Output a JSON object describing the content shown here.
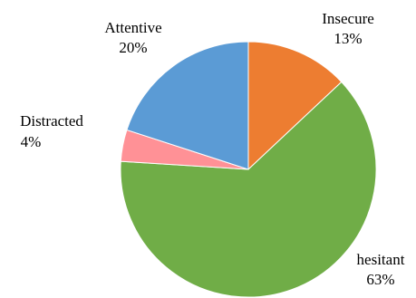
{
  "chart_data": {
    "type": "pie",
    "title": "",
    "start_angle_deg": 0,
    "direction": "clockwise",
    "slices": [
      {
        "label": "Insecure",
        "value": 13,
        "value_text": "13%",
        "color": "#ED7D31"
      },
      {
        "label": "hesitant",
        "value": 63,
        "value_text": "63%",
        "color": "#70AD47"
      },
      {
        "label": "Distracted",
        "value": 4,
        "value_text": "4%",
        "color": "#FF9196"
      },
      {
        "label": "Attentive",
        "value": 20,
        "value_text": "20%",
        "color": "#5B9BD5"
      }
    ]
  }
}
